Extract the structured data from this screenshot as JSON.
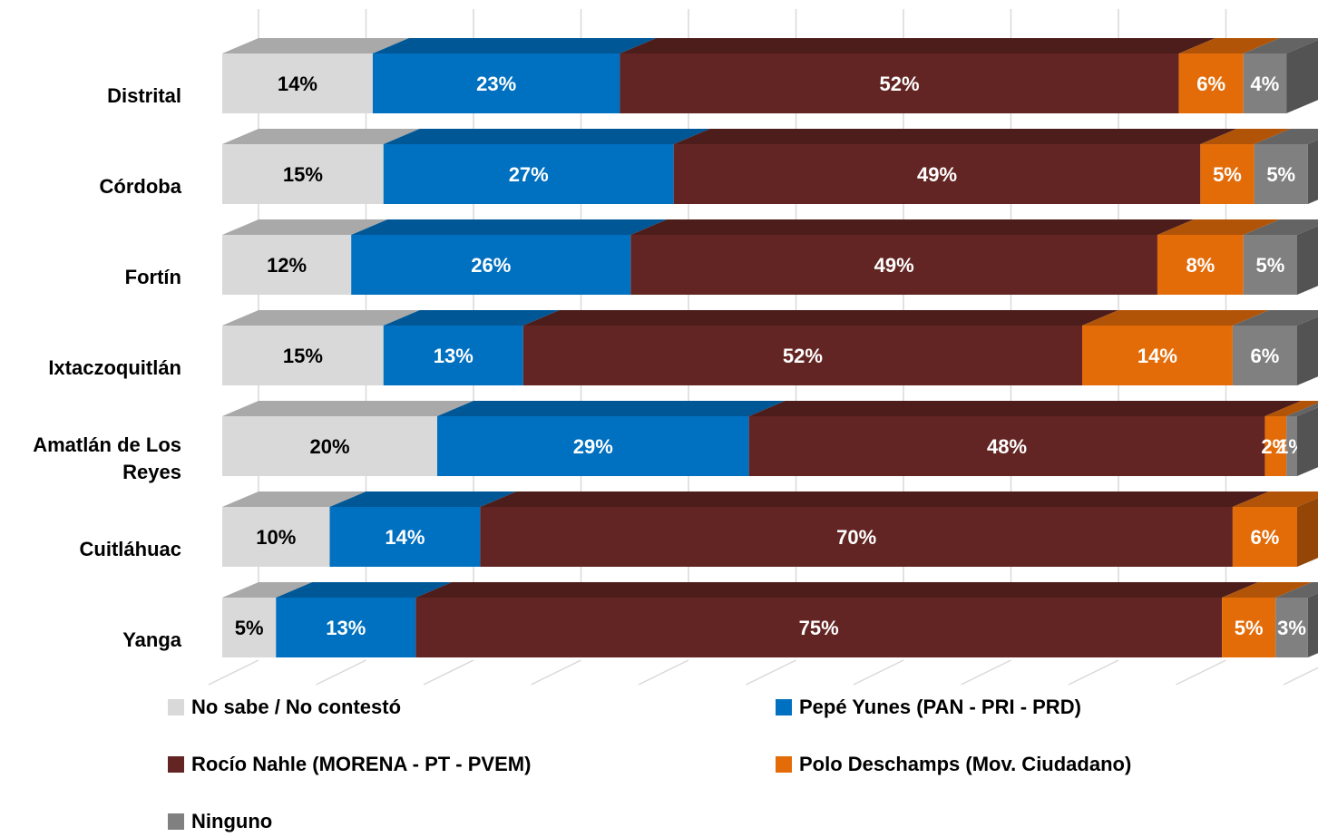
{
  "chart_data": {
    "type": "bar",
    "orientation": "horizontal",
    "stacked": true,
    "three_d": true,
    "categories": [
      "Distrital",
      "Córdoba",
      "Fortín",
      "Ixtaczoquitlán",
      "Amatlán de Los Reyes",
      "Cuitláhuac",
      "Yanga"
    ],
    "xlim": [
      0,
      100
    ],
    "xticks": [
      0,
      10,
      20,
      30,
      40,
      50,
      60,
      70,
      80,
      90,
      100
    ],
    "grid": true,
    "legend": "bottom",
    "series": [
      {
        "name": "No sabe / No contestó",
        "color": "#d9d9d9",
        "values": [
          14,
          15,
          12,
          15,
          20,
          10,
          5
        ],
        "value_labels": [
          "14%",
          "15%",
          "12%",
          "15%",
          "20%",
          "10%",
          "5%"
        ]
      },
      {
        "name": "Pepé Yunes (PAN - PRI - PRD)",
        "color": "#0070c0",
        "values": [
          23,
          27,
          26,
          13,
          29,
          14,
          13
        ],
        "value_labels": [
          "23%",
          "27%",
          "26%",
          "13%",
          "29%",
          "14%",
          "13%"
        ]
      },
      {
        "name": "Rocío Nahle (MORENA - PT - PVEM)",
        "color": "#632523",
        "values": [
          52,
          49,
          49,
          52,
          48,
          70,
          75
        ],
        "value_labels": [
          "52%",
          "49%",
          "49%",
          "52%",
          "48%",
          "70%",
          "75%"
        ]
      },
      {
        "name": "Polo Deschamps (Mov. Ciudadano)",
        "color": "#e36c09",
        "values": [
          6,
          5,
          8,
          14,
          2,
          6,
          5
        ],
        "value_labels": [
          "6%",
          "5%",
          "8%",
          "14%",
          "2%",
          "6%",
          "5%"
        ]
      },
      {
        "name": "Ninguno",
        "color": "#808080",
        "values": [
          4,
          5,
          5,
          6,
          1,
          null,
          3
        ],
        "value_labels": [
          "4%",
          "5%",
          "5%",
          "6%",
          "1%",
          null,
          "3%"
        ]
      }
    ]
  }
}
